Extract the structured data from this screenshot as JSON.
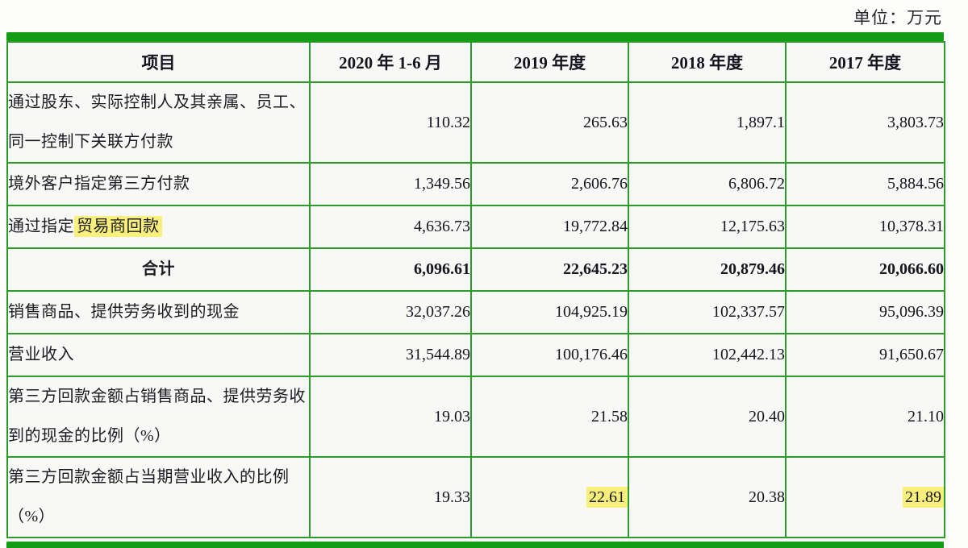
{
  "unit_label": "单位：万元",
  "colors": {
    "table_border_green": "#2b9b2b",
    "accent_bar_green": "#149c14",
    "highlight_yellow": "#f9ef7c",
    "text_dark": "#1b1b22"
  },
  "table": {
    "header": {
      "col0": "项目",
      "col1": "2020 年 1-6 月",
      "col2": "2019 年度",
      "col3": "2018 年度",
      "col4": "2017 年度"
    },
    "rows": [
      {
        "label": "通过股东、实际控制人及其亲属、员工、同一控制下关联方付款",
        "values": [
          "110.32",
          "265.63",
          "1,897.1",
          "3,803.73"
        ]
      },
      {
        "label": "境外客户指定第三方付款",
        "values": [
          "1,349.56",
          "2,606.76",
          "6,806.72",
          "5,884.56"
        ]
      },
      {
        "label_prefix": "通过指定",
        "label_highlighted": "贸易商回款",
        "values": [
          "4,636.73",
          "19,772.84",
          "12,175.63",
          "10,378.31"
        ]
      },
      {
        "label": "合计",
        "values": [
          "6,096.61",
          "22,645.23",
          "20,879.46",
          "20,066.60"
        ]
      },
      {
        "label": "销售商品、提供劳务收到的现金",
        "values": [
          "32,037.26",
          "104,925.19",
          "102,337.57",
          "95,096.39"
        ]
      },
      {
        "label": "营业收入",
        "values": [
          "31,544.89",
          "100,176.46",
          "102,442.13",
          "91,650.67"
        ]
      },
      {
        "label": "第三方回款金额占销售商品、提供劳务收到的现金的比例（%）",
        "values": [
          "19.03",
          "21.58",
          "20.40",
          "21.10"
        ]
      },
      {
        "label": "第三方回款金额占当期营业收入的比例（%）",
        "values": [
          "19.33",
          "22.61",
          "20.38",
          "21.89"
        ]
      }
    ]
  }
}
